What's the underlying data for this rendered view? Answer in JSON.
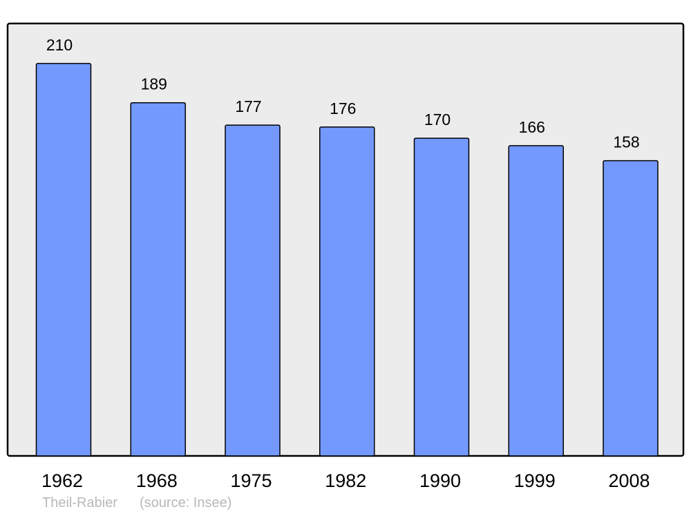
{
  "chart_data": {
    "type": "bar",
    "categories": [
      "1962",
      "1968",
      "1975",
      "1982",
      "1990",
      "1999",
      "2008"
    ],
    "values": [
      210,
      189,
      177,
      176,
      170,
      166,
      158
    ],
    "title": "",
    "xlabel": "",
    "ylabel": "",
    "ylim": [
      0,
      231.4
    ],
    "grid": false,
    "data_labels": true,
    "colors": {
      "bar": "#7399ff",
      "plot_background": "#ececec",
      "border": "#000000"
    }
  },
  "footer": {
    "place": "Theil-Rabier",
    "source": "(source: Insee)"
  }
}
